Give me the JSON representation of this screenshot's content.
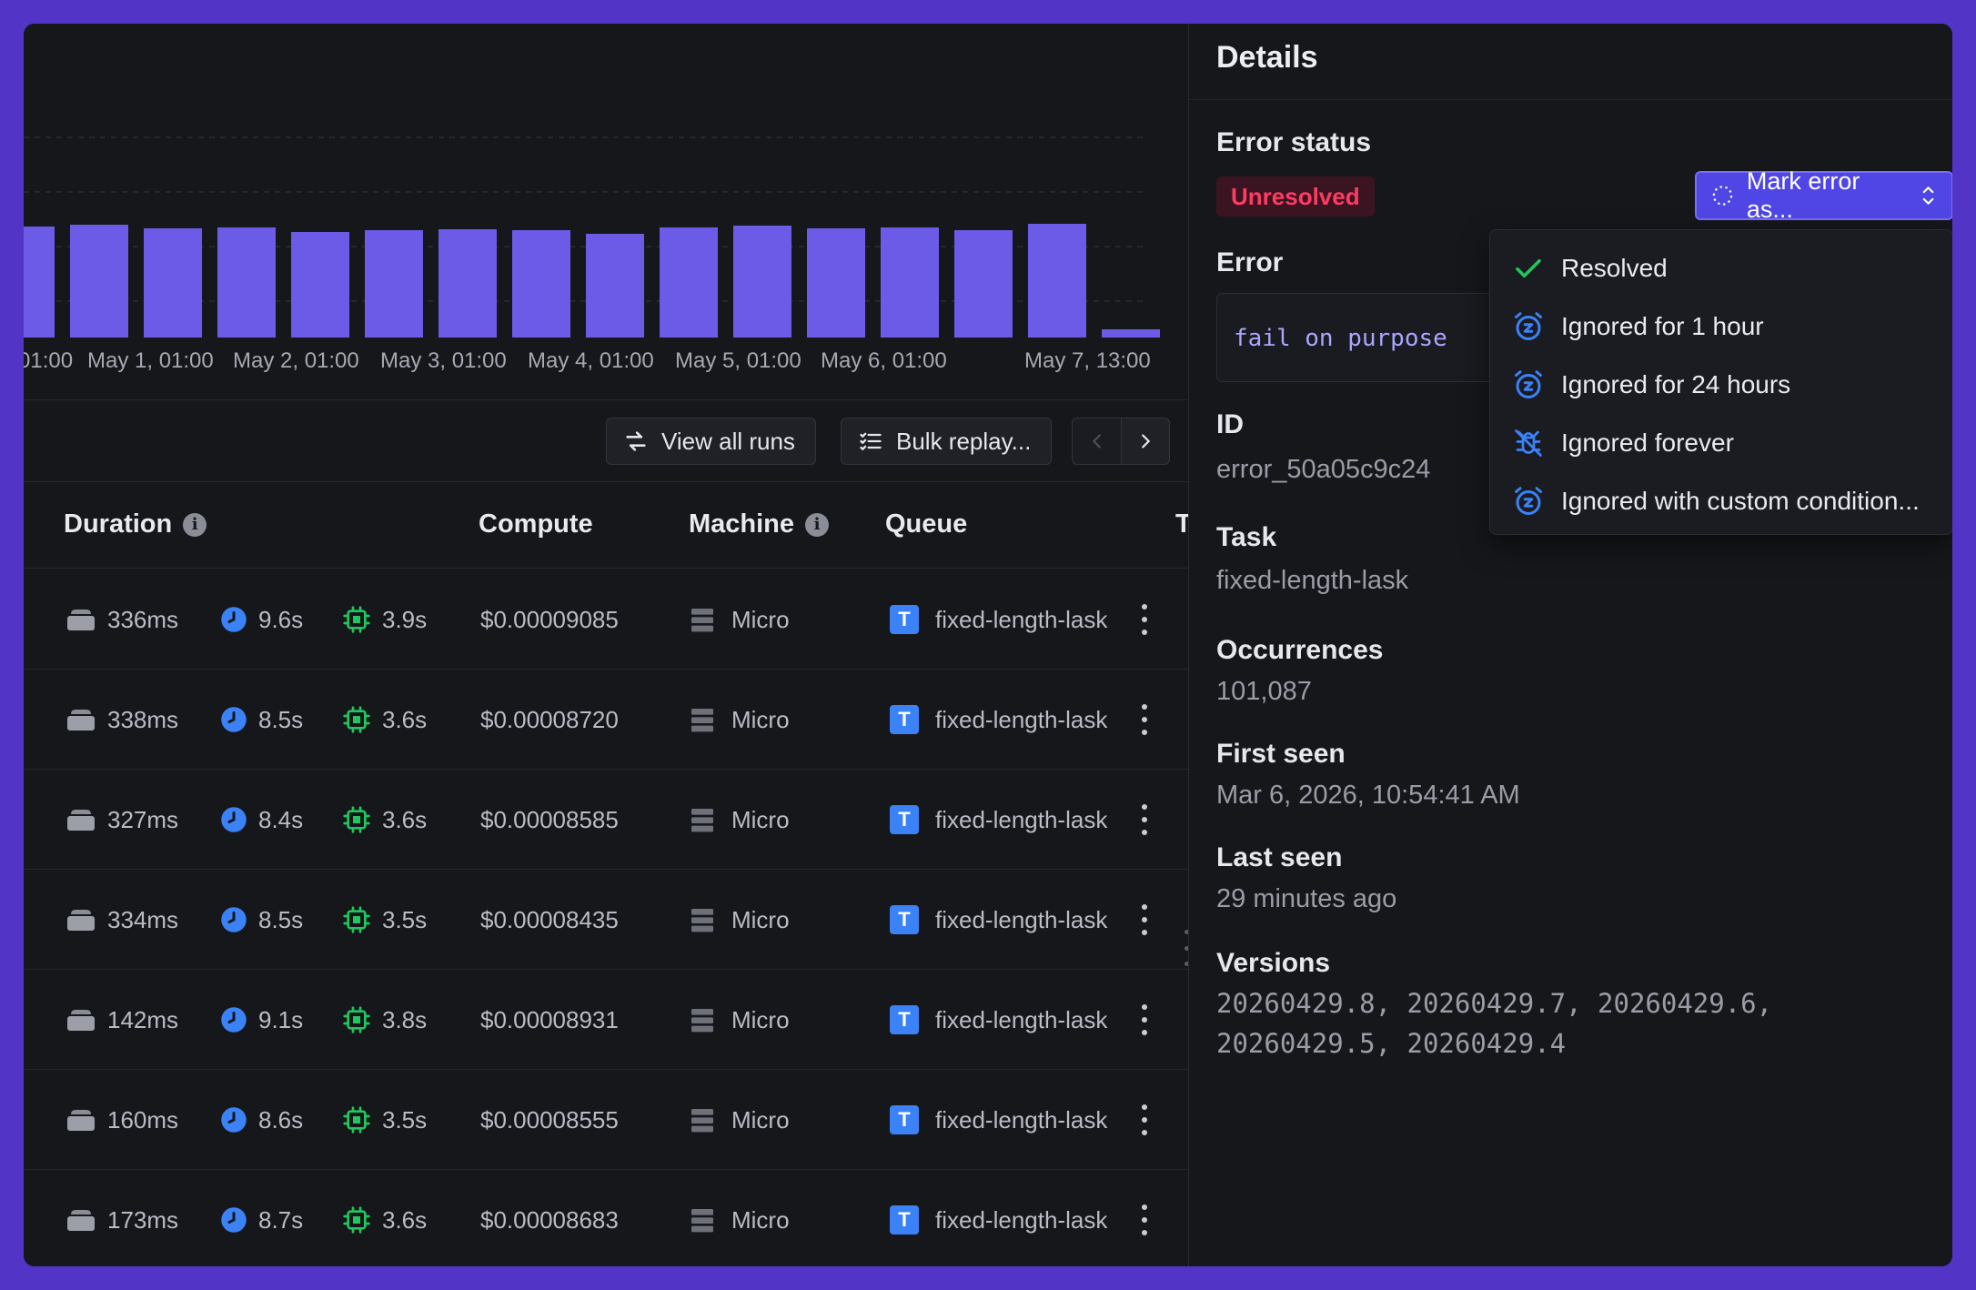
{
  "chart_data": {
    "type": "bar",
    "x_tick_labels": [
      "01:00",
      "May 1, 01:00",
      "May 2, 01:00",
      "May 3, 01:00",
      "May 4, 01:00",
      "May 5, 01:00",
      "May 6, 01:00",
      "May 7, 13:00"
    ],
    "values": [
      122,
      124,
      120,
      121,
      116,
      118,
      119,
      118,
      114,
      121,
      123,
      120,
      121,
      118,
      125,
      9
    ],
    "ylim": [
      0,
      260
    ],
    "grid": "dashed horizontal",
    "bar_color": "#6c5be6"
  },
  "toolbar": {
    "view_all_runs": "View all runs",
    "bulk_replay": "Bulk replay..."
  },
  "table": {
    "headers": {
      "duration": "Duration",
      "compute": "Compute",
      "machine": "Machine",
      "queue": "Queue",
      "extra": "T"
    },
    "rows": [
      {
        "queued": "336ms",
        "duration": "9.6s",
        "cpu": "3.9s",
        "compute": "$0.00009085",
        "machine": "Micro",
        "queue": "fixed-length-lask"
      },
      {
        "queued": "338ms",
        "duration": "8.5s",
        "cpu": "3.6s",
        "compute": "$0.00008720",
        "machine": "Micro",
        "queue": "fixed-length-lask"
      },
      {
        "queued": "327ms",
        "duration": "8.4s",
        "cpu": "3.6s",
        "compute": "$0.00008585",
        "machine": "Micro",
        "queue": "fixed-length-lask"
      },
      {
        "queued": "334ms",
        "duration": "8.5s",
        "cpu": "3.5s",
        "compute": "$0.00008435",
        "machine": "Micro",
        "queue": "fixed-length-lask"
      },
      {
        "queued": "142ms",
        "duration": "9.1s",
        "cpu": "3.8s",
        "compute": "$0.00008931",
        "machine": "Micro",
        "queue": "fixed-length-lask"
      },
      {
        "queued": "160ms",
        "duration": "8.6s",
        "cpu": "3.5s",
        "compute": "$0.00008555",
        "machine": "Micro",
        "queue": "fixed-length-lask"
      },
      {
        "queued": "173ms",
        "duration": "8.7s",
        "cpu": "3.6s",
        "compute": "$0.00008683",
        "machine": "Micro",
        "queue": "fixed-length-lask"
      }
    ],
    "queue_badge": "T"
  },
  "details": {
    "title": "Details",
    "error_status_label": "Error status",
    "status": "Unresolved",
    "mark_button": "Mark error as...",
    "error_label": "Error",
    "error_message": "fail on purpose",
    "id_label": "ID",
    "id_value": "error_50a05c9c24",
    "task_label": "Task",
    "task_value": "fixed-length-lask",
    "occurrences_label": "Occurrences",
    "occurrences_value": "101,087",
    "first_seen_label": "First seen",
    "first_seen_value": "Mar 6, 2026, 10:54:41 AM",
    "last_seen_label": "Last seen",
    "last_seen_value": "29 minutes ago",
    "versions_label": "Versions",
    "versions_line1": "20260429.8, 20260429.7, 20260429.6,",
    "versions_line2": "20260429.5, 20260429.4"
  },
  "dropdown": {
    "items": [
      {
        "label": "Resolved",
        "icon": "check-icon"
      },
      {
        "label": "Ignored for 1 hour",
        "icon": "alarm-snooze-icon"
      },
      {
        "label": "Ignored for 24 hours",
        "icon": "alarm-snooze-icon"
      },
      {
        "label": "Ignored forever",
        "icon": "bug-off-icon"
      },
      {
        "label": "Ignored with custom condition...",
        "icon": "alarm-snooze-icon"
      }
    ]
  },
  "colors": {
    "accent": "#4f46e5",
    "bar": "#6c5be6",
    "error_red": "#ff3b63",
    "blue_icon": "#3b82f6",
    "green_icon": "#22c55e"
  }
}
